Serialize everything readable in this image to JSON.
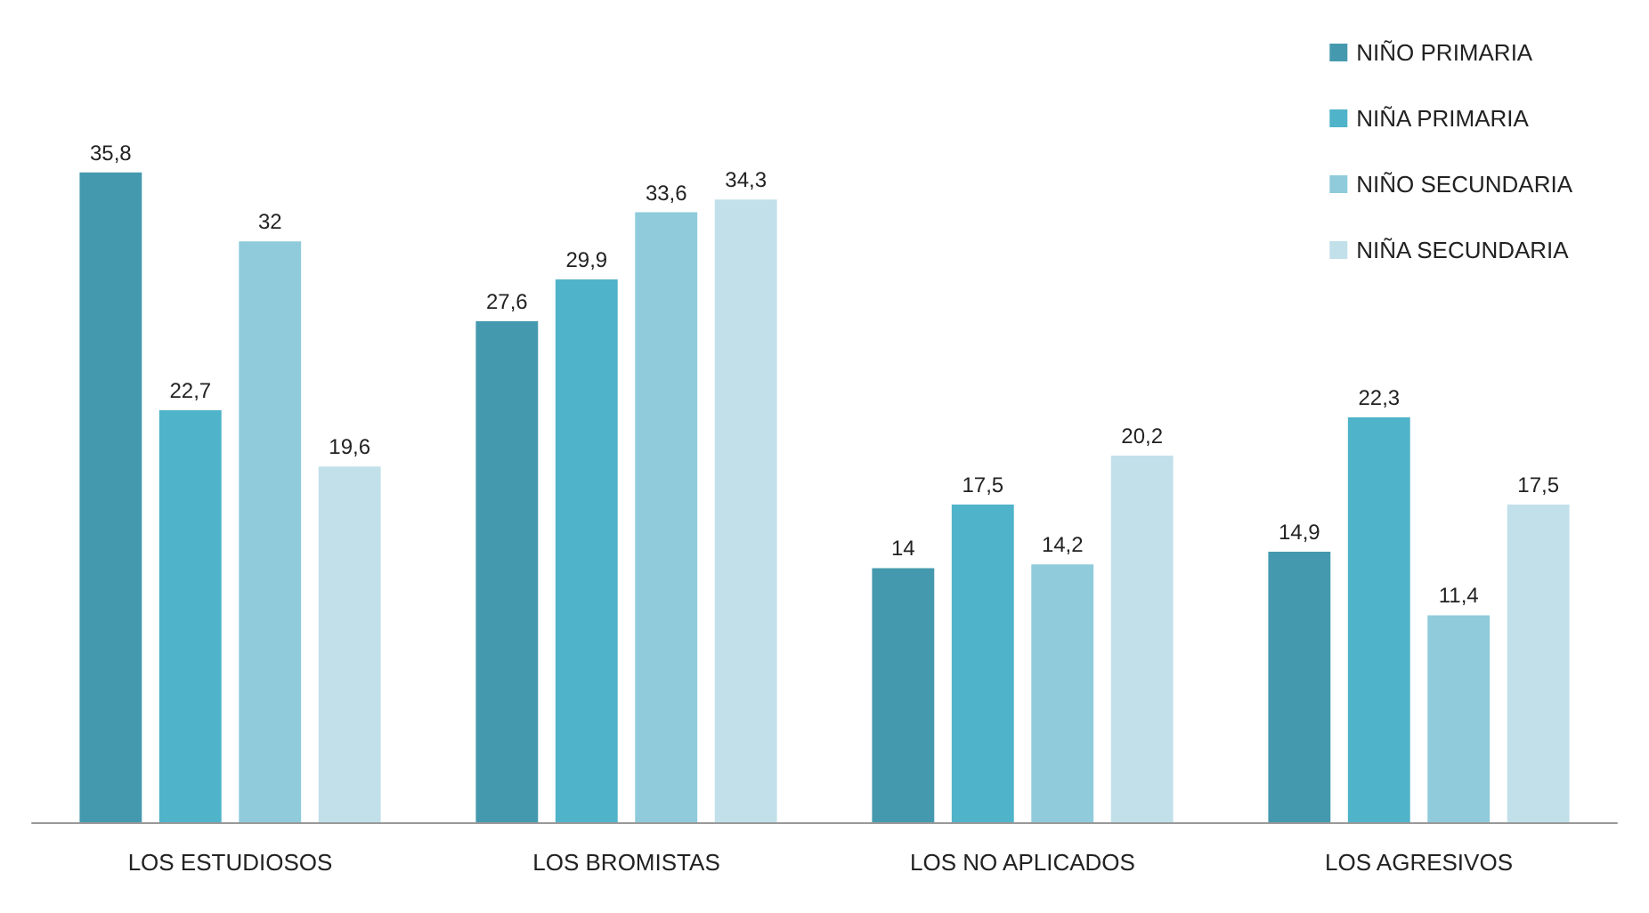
{
  "chart_data": {
    "type": "bar",
    "categories": [
      "LOS ESTUDIOSOS",
      "LOS BROMISTAS",
      "LOS NO APLICADOS",
      "LOS AGRESIVOS"
    ],
    "series": [
      {
        "name": "NIÑO PRIMARIA",
        "color": "#4599ae",
        "values": [
          35.8,
          27.6,
          14,
          14.9
        ],
        "value_labels": [
          "35,8",
          "27,6",
          "14",
          "14,9"
        ]
      },
      {
        "name": "NIÑA PRIMARIA",
        "color": "#4fb3c9",
        "values": [
          22.7,
          29.9,
          17.5,
          22.3
        ],
        "value_labels": [
          "22,7",
          "29,9",
          "17,5",
          "22,3"
        ]
      },
      {
        "name": "NIÑO SECUNDARIA",
        "color": "#8fcbdb",
        "values": [
          32,
          33.6,
          14.2,
          11.4
        ],
        "value_labels": [
          "32",
          "33,6",
          "14,2",
          "11,4"
        ]
      },
      {
        "name": "NIÑA SECUNDARIA",
        "color": "#c2e0ea",
        "values": [
          19.6,
          34.3,
          20.2,
          17.5
        ],
        "value_labels": [
          "19,6",
          "34,3",
          "20,2",
          "17,5"
        ]
      }
    ],
    "legend": "top right",
    "grid": false
  }
}
